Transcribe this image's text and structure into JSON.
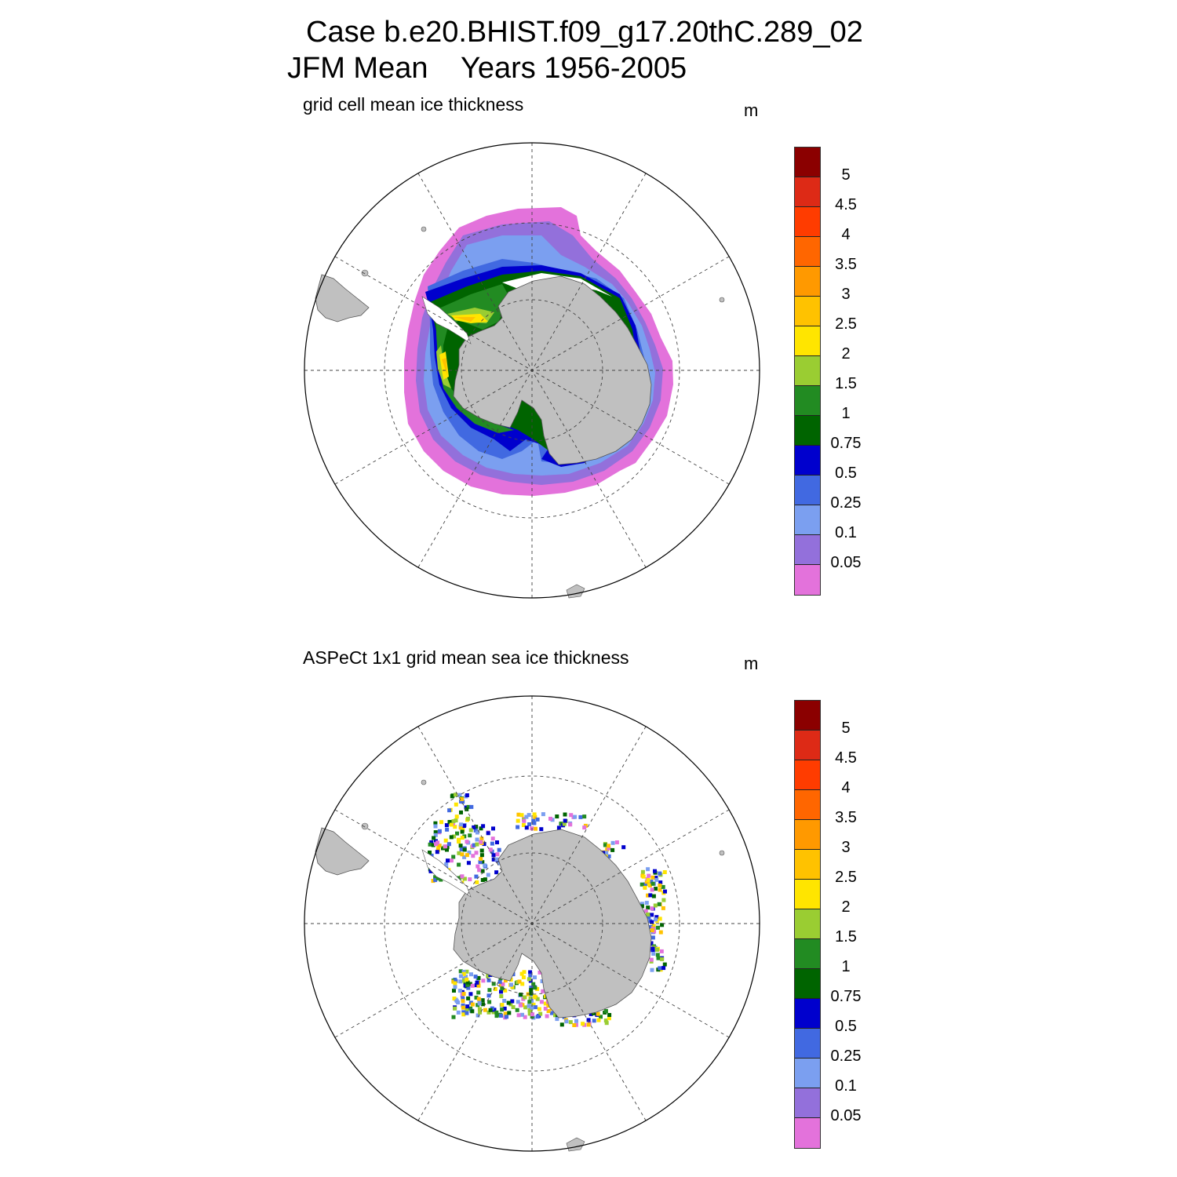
{
  "title": {
    "line1": "Case b.e20.BHIST.f09_g17.20thC.289_02",
    "line2": "JFM Mean    Years 1956-2005"
  },
  "colorbar": {
    "labels": [
      "5",
      "4.5",
      "4",
      "3.5",
      "3",
      "2.5",
      "2",
      "1.5",
      "1",
      "0.75",
      "0.5",
      "0.25",
      "0.1",
      "0.05"
    ],
    "colors": [
      "#8b0000",
      "#dd2a16",
      "#ff3c00",
      "#ff6600",
      "#ff9900",
      "#ffc200",
      "#ffe500",
      "#9acd32",
      "#228b22",
      "#006400",
      "#0000cd",
      "#4169e1",
      "#7b9ff0",
      "#9370db",
      "#e372db"
    ]
  },
  "panels": [
    {
      "subtitle": "grid cell mean ice thickness",
      "unit": "m"
    },
    {
      "subtitle": "ASPeCt 1x1 grid mean sea ice thickness",
      "unit": "m"
    }
  ],
  "land_color": "#c0c0c0"
}
